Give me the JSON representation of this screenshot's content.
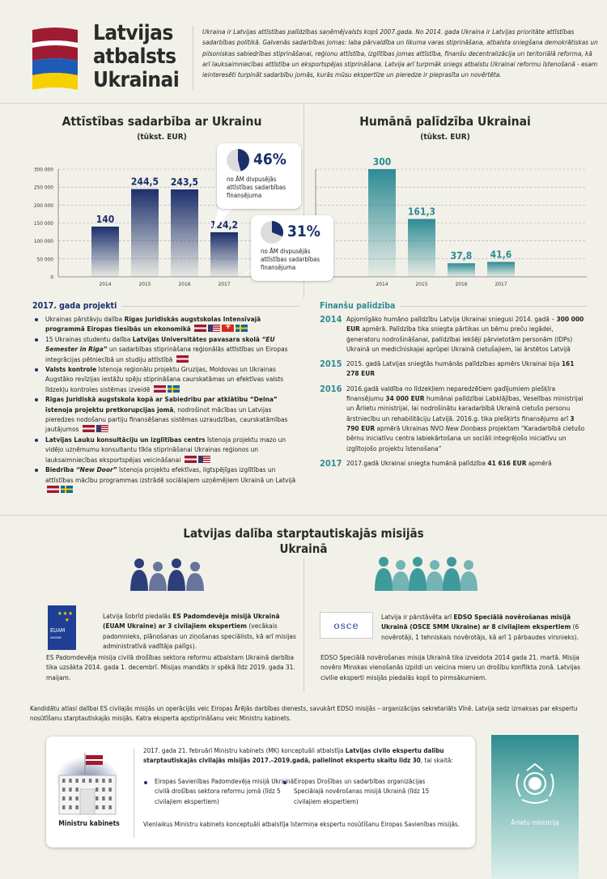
{
  "header": {
    "title_lines": [
      "Latvijas",
      "atbalsts",
      "Ukrainai"
    ],
    "intro": "Ukraina ir Latvijas attīstības palīdzības saņēmējvalsts kopš 2007.gada. No 2014. gada Ukraina ir Latvijas prioritāte attīstības sadarbības politikā. Galvenās sadarbības jomas: laba pārvaldība un likuma varas stiprināšana, atbalsta sniegšana demokrātiskas un pilsoniskas sabiedrības stiprināšanai, reģionu attīstība, izglītības jomas attīstība, finanšu decentralizācija un teritoriālā reforma, kā arī lauksaimniecības attīstība un eksportspējas stiprināšana. Latvija arī turpmāk sniegs atbalstu Ukrainai reformu īstenošanā - esam ieinteresēti turpināt sadarbību jomās, kurās mūsu ekspertīze un pieredze ir pieprasīta un novērtēta."
  },
  "colors": {
    "navy": "#1b2f6b",
    "teal": "#2e8b95",
    "bg": "#f2f1e9"
  },
  "chart_data": [
    {
      "type": "bar",
      "title": "Attīstības sadarbība ar Ukrainu",
      "subtitle": "(tūkst. EUR)",
      "categories": [
        "2014",
        "2015",
        "2016",
        "2017"
      ],
      "values": [
        140,
        244.5,
        243.5,
        124.2
      ],
      "value_labels": [
        "140",
        "244,5",
        "243,5",
        "124,2"
      ],
      "yticks": [
        "0",
        "50 000",
        "100 000",
        "150 000",
        "200 000",
        "250 000",
        "300 000"
      ],
      "ylim": [
        0,
        300
      ],
      "grid": true,
      "callouts": [
        {
          "pct": 46,
          "label": "46%",
          "text": "no ĀM divpusējās attīstības sadarbības finansējuma"
        },
        {
          "pct": 31,
          "label": "31%",
          "text": "no ĀM divpusējās attīstības sadarbības finansējuma"
        }
      ]
    },
    {
      "type": "bar",
      "title": "Humānā palīdzība Ukrainai",
      "subtitle": "(tūkst. EUR)",
      "categories": [
        "2014",
        "2015",
        "2016",
        "2017"
      ],
      "values": [
        300,
        161.3,
        37.8,
        41.6
      ],
      "value_labels": [
        "300",
        "161,3",
        "37,8",
        "41,6"
      ],
      "ylim": [
        0,
        300
      ],
      "grid": true
    }
  ],
  "projects": {
    "heading": "2017. gada projekti",
    "items": [
      {
        "segs": [
          [
            "Ukrainas pārstāvju dalība ",
            0
          ],
          [
            "Rīgas Juridiskās augstskolas Intensīvajā programmā Eiropas tiesībās un ekonomikā",
            1
          ]
        ],
        "flags": [
          "lv",
          "us",
          "ch",
          "se"
        ]
      },
      {
        "segs": [
          [
            "15 Ukrainas studentu dalība ",
            0
          ],
          [
            "Latvijas Universitātes pavasara skolā ",
            1
          ],
          [
            "“EU Semester in Riga”",
            2
          ],
          [
            " un sadarbības stiprināšana reģionālās attīstības un Eiropas integrācijas pētniecībā un studiju attīstībā",
            0
          ]
        ],
        "flags": [
          "lv"
        ]
      },
      {
        "segs": [
          [
            "Valsts kontrole",
            1
          ],
          [
            " īstenoja reģionālu projektu Gruzijas, Moldovas un Ukrainas Augstāko revīzijas iestāžu spēju stiprināšana caurskatāmas un efektīvas valsts līdzekļu kontroles sistēmas izveidē",
            0
          ]
        ],
        "flags": [
          "lv",
          "se"
        ]
      },
      {
        "segs": [
          [
            "Rīgas Juridiskā augstskola kopā ar Sabiedrību par atklātību “Delna” īstenoja projektu pretkorupcijas jomā",
            1
          ],
          [
            ", nodrošinot mācības un Latvijas pieredzes nodošanu partiju finansēšanas sistēmas uzraudzības, caurskatāmības jautājumos",
            0
          ]
        ],
        "flags": [
          "lv",
          "us"
        ]
      },
      {
        "segs": [
          [
            "Latvijas Lauku konsultāciju un izglītības centrs",
            1
          ],
          [
            " īstenoja projektu mazo un vidējo uzņēmumu konsultantu tīkla stiprināšanai Ukrainas reģionos un lauksaimniecības eksportspējas veicināšanai",
            0
          ]
        ],
        "flags": [
          "lv",
          "us"
        ]
      },
      {
        "segs": [
          [
            "Biedrība ",
            1
          ],
          [
            "“New Door”",
            2
          ],
          [
            " īstenoja projektu efektīvas, ilgtspējīgas izglītības un attīstības mācību programmas izstrādē sociālajiem uzņēmējiem Ukrainā un Latvijā",
            0
          ]
        ],
        "flags": [
          "lv",
          "se"
        ]
      }
    ]
  },
  "finance": {
    "heading": "Finanšu palīdzība",
    "rows": [
      {
        "year": "2014",
        "segs": [
          [
            "Apjomīgāko humāno palīdzību Latvija Ukrainai sniegusi 2014. gadā – ",
            0
          ],
          [
            "300 000 EUR",
            1
          ],
          [
            " apmērā. Palīdzība tika sniegta pārtikas un bērnu preču iegādei, ģeneratoru nodrošināšanai, palīdzībai iekšēji pārvietotām personām (IDPs) Ukrainā un medicīniskajai aprūpei Ukrainā cietušajiem, lai ārstētos Latvijā",
            0
          ]
        ]
      },
      {
        "year": "2015",
        "segs": [
          [
            "2015. gadā Latvijas sniegtās humānās palīdzības apmērs Ukrainai bija ",
            0
          ],
          [
            "161 278 EUR",
            1
          ]
        ]
      },
      {
        "year": "2016",
        "segs": [
          [
            "2016.gadā valdība no līdzekļiem neparedzētiem gadījumiem piešķīra finansējumu ",
            0
          ],
          [
            "34 000 EUR",
            1
          ],
          [
            " humānai palīdzībai Labklājības, Veselības ministrijai un Ārlietu ministrijai, lai nodrošinātu karadarbībā Ukrainā cietušo personu ārstniecību un rehabilitāciju Latvijā. 2016.g. tika piešķirts finansējums arī ",
            0
          ],
          [
            "3 790 EUR",
            1
          ],
          [
            " apmērā Ukrainas NVO ",
            0
          ],
          [
            "New Donbass",
            3
          ],
          [
            " projektam “Karadarbībā cietušo bērnu iniciatīvu centra labiekārtošana un sociāli integrējošo iniciatīvu un izglītojošo projektu īstenošana”",
            0
          ]
        ]
      },
      {
        "year": "2017",
        "segs": [
          [
            "2017.gadā Ukrainai sniegta humānā palīdzība ",
            0
          ],
          [
            "41 616 EUR",
            1
          ],
          [
            " apmērā",
            0
          ]
        ]
      }
    ]
  },
  "missions": {
    "title": "Latvijas dalība starptautiskajās misijās Ukrainā",
    "euam": {
      "logo": "EUAM",
      "logo_sub": "UKRAINE",
      "segs": [
        [
          "Latvija šobrīd piedalās ",
          0
        ],
        [
          "ES Padomdevēja misijā Ukrainā (EUAM Ukraine) ar 3 civilajiem ekspertiem",
          1
        ],
        [
          " (vecākais padomnieks, plānošanas un ziņošanas speciālists, kā arī misijas administratīvā vadītāja palīgs).",
          0
        ]
      ],
      "text2": "ES Padomdevēja misija civilā drošības sektora reformu atbalstam Ukrainā darbība tika uzsākta 2014. gada 1. decembrī. Misijas mandāts ir spēkā līdz 2019. gada 31. maijam."
    },
    "osce": {
      "logo": "osce",
      "segs": [
        [
          "Latvija ir pārstāvēta arī ",
          0
        ],
        [
          "EDSO Speciālā novērošanas misijā Ukrainā (OSCE SMM Ukraine) ar 8 civilajiem ekspertiem",
          1
        ],
        [
          " (6 novērotāji, 1 tehniskais novērotājs, kā arī 1 pārbaudes virsnieks).",
          0
        ]
      ],
      "text2": "EDSO Speciālā novērošanas misija Ukrainā tika izveidota 2014 gada 21. martā. Misija novēro Minskas vienošanās izpildi un veicina mieru un drošību konflikta zonā. Latvijas civilie eksperti misijās piedalās kopš to pirmsākumiem."
    },
    "note": "Kandidātu atlasi dalībai ES civilajās misijās un operācijās veic Eiropas Ārējās darbības dienests, savukārt EDSO misijās – organizācijas sekretariāts Vīnē. Latvija sedz izmaksas par ekspertu nosūtīšanu starptautiskajās misijās. Katra eksperta apstiprināšanu veic Ministru kabinets."
  },
  "cabinet": {
    "label": "Ministru kabinets",
    "segs": [
      [
        "2017. gada 21. februārī Ministru kabinets (MK) konceptuāli atbalstīja ",
        0
      ],
      [
        "Latvijas civilo ekspertu dalību starptautiskajās civilajās misijās 2017.–2019.gadā, palielinot ekspertu skaitu līdz 30",
        1
      ],
      [
        ", tai skaitā:",
        0
      ]
    ],
    "bullets": [
      "Eiropas Savienības Padomdevēja misijā Ukrainā civilā drošības sektora reformu jomā (līdz 5 civilajiem ekspertiem)",
      "Eiropas Drošības un sadarbības organizācijas Speciālajā novērošanas misijā Ukrainā (līdz 15 civilajiem ekspertiem)"
    ],
    "footer": "Vienlaikus Ministru kabinets konceptuāli atbalstīja īstermiņa ekspertu nosūtīšanu Eiropas Savienības misijās."
  },
  "mfa": {
    "label": "Ārlietu ministrija"
  }
}
